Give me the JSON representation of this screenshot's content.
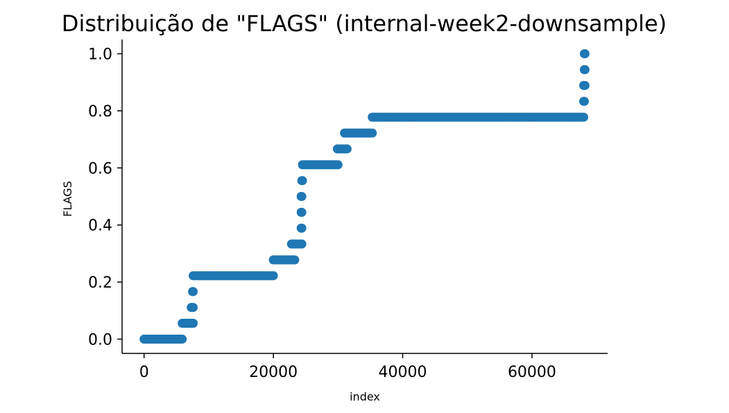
{
  "chart_data": {
    "type": "scatter",
    "title": "Distribuição de \"FLAGS\" (internal-week2-downsample)",
    "xlabel": "index",
    "ylabel": "FLAGS",
    "xlim": [
      -3400,
      71700
    ],
    "ylim": [
      -0.05,
      1.05
    ],
    "x_ticks": [
      0,
      20000,
      40000,
      60000
    ],
    "x_tick_labels": [
      "0",
      "20000",
      "40000",
      "60000"
    ],
    "y_ticks": [
      0.0,
      0.2,
      0.4,
      0.6,
      0.8,
      1.0
    ],
    "y_tick_labels": [
      "0.0",
      "0.2",
      "0.4",
      "0.6",
      "0.8",
      "1.0"
    ],
    "grid": false,
    "legend": "none",
    "series_color": "#1f77b4",
    "segments": [
      {
        "x_start": 0,
        "x_end": 5900,
        "y": 0.0
      },
      {
        "x_start": 5900,
        "x_end": 7600,
        "y": 0.0556
      },
      {
        "x_start": 7300,
        "x_end": 7600,
        "y": 0.1111
      },
      {
        "x_start": 7500,
        "x_end": 7600,
        "y": 0.1667
      },
      {
        "x_start": 7600,
        "x_end": 20000,
        "y": 0.2222
      },
      {
        "x_start": 20000,
        "x_end": 23300,
        "y": 0.2778
      },
      {
        "x_start": 22800,
        "x_end": 24400,
        "y": 0.3333
      },
      {
        "x_start": 24300,
        "x_end": 24400,
        "y": 0.3889
      },
      {
        "x_start": 24300,
        "x_end": 24400,
        "y": 0.4444
      },
      {
        "x_start": 24300,
        "x_end": 24400,
        "y": 0.5
      },
      {
        "x_start": 24400,
        "x_end": 24500,
        "y": 0.5556
      },
      {
        "x_start": 24500,
        "x_end": 30000,
        "y": 0.6111
      },
      {
        "x_start": 29900,
        "x_end": 31400,
        "y": 0.6667
      },
      {
        "x_start": 31000,
        "x_end": 35300,
        "y": 0.7222
      },
      {
        "x_start": 35300,
        "x_end": 68000,
        "y": 0.7778
      },
      {
        "x_start": 68000,
        "x_end": 68100,
        "y": 0.8333
      },
      {
        "x_start": 68000,
        "x_end": 68200,
        "y": 0.8889
      },
      {
        "x_start": 68100,
        "x_end": 68200,
        "y": 0.9444
      },
      {
        "x_start": 68100,
        "x_end": 68200,
        "y": 1.0
      }
    ]
  }
}
